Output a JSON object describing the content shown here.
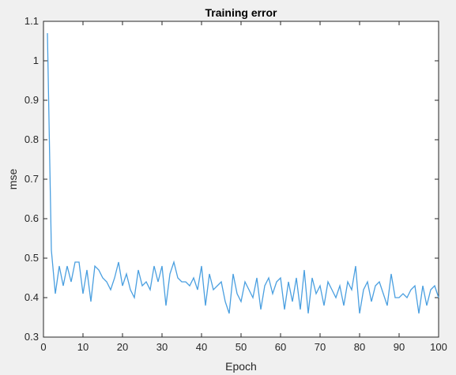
{
  "chart_data": {
    "type": "line",
    "title": "Training error",
    "xlabel": "Epoch",
    "ylabel": "mse",
    "xlim": [
      0,
      100
    ],
    "ylim": [
      0.3,
      1.1
    ],
    "grid": false,
    "legend": "none",
    "x_ticks": [
      "0",
      "10",
      "20",
      "30",
      "40",
      "50",
      "60",
      "70",
      "80",
      "90",
      "100"
    ],
    "y_ticks": [
      "0.3",
      "0.4",
      "0.5",
      "0.6",
      "0.7",
      "0.8",
      "0.9",
      "1",
      "1.1"
    ],
    "series": [
      {
        "color": "#4a9fe0",
        "x": [
          1,
          2,
          3,
          4,
          5,
          6,
          7,
          8,
          9,
          10,
          11,
          12,
          13,
          14,
          15,
          16,
          17,
          18,
          19,
          20,
          21,
          22,
          23,
          24,
          25,
          26,
          27,
          28,
          29,
          30,
          31,
          32,
          33,
          34,
          35,
          36,
          37,
          38,
          39,
          40,
          41,
          42,
          43,
          44,
          45,
          46,
          47,
          48,
          49,
          50,
          51,
          52,
          53,
          54,
          55,
          56,
          57,
          58,
          59,
          60,
          61,
          62,
          63,
          64,
          65,
          66,
          67,
          68,
          69,
          70,
          71,
          72,
          73,
          74,
          75,
          76,
          77,
          78,
          79,
          80,
          81,
          82,
          83,
          84,
          85,
          86,
          87,
          88,
          89,
          90,
          91,
          92,
          93,
          94,
          95,
          96,
          97,
          98,
          99,
          100
        ],
        "values": [
          1.07,
          0.52,
          0.41,
          0.48,
          0.43,
          0.48,
          0.44,
          0.49,
          0.49,
          0.41,
          0.47,
          0.39,
          0.48,
          0.47,
          0.45,
          0.44,
          0.42,
          0.45,
          0.49,
          0.43,
          0.46,
          0.42,
          0.4,
          0.47,
          0.43,
          0.44,
          0.42,
          0.48,
          0.44,
          0.48,
          0.38,
          0.46,
          0.49,
          0.45,
          0.44,
          0.44,
          0.43,
          0.45,
          0.42,
          0.48,
          0.38,
          0.46,
          0.42,
          0.43,
          0.44,
          0.39,
          0.36,
          0.46,
          0.41,
          0.39,
          0.44,
          0.42,
          0.4,
          0.45,
          0.37,
          0.43,
          0.45,
          0.41,
          0.44,
          0.45,
          0.37,
          0.44,
          0.39,
          0.45,
          0.37,
          0.47,
          0.36,
          0.45,
          0.41,
          0.43,
          0.38,
          0.44,
          0.42,
          0.4,
          0.43,
          0.38,
          0.44,
          0.42,
          0.48,
          0.36,
          0.42,
          0.44,
          0.39,
          0.43,
          0.44,
          0.41,
          0.38,
          0.46,
          0.4,
          0.4,
          0.41,
          0.4,
          0.42,
          0.43,
          0.36,
          0.43,
          0.38,
          0.42,
          0.43,
          0.4
        ]
      }
    ]
  }
}
